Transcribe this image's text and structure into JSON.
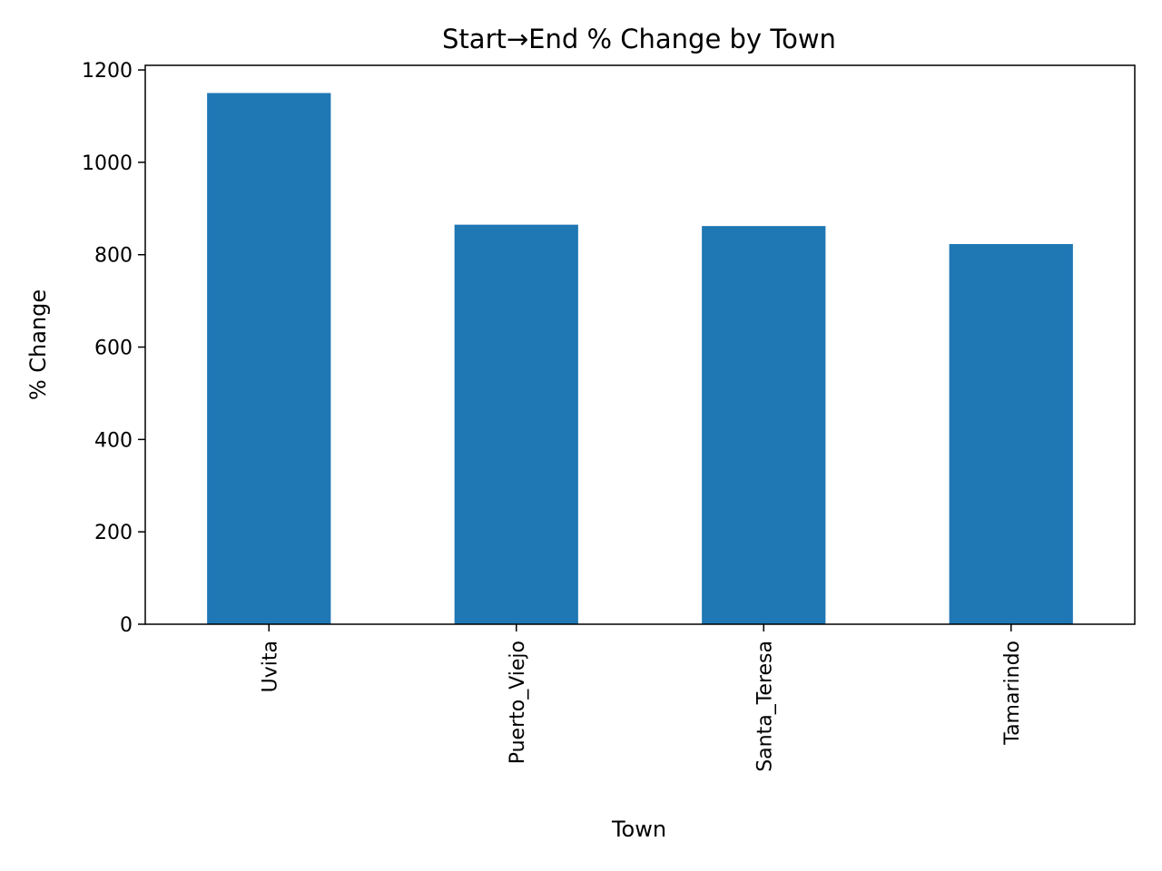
{
  "chart_data": {
    "type": "bar",
    "title": "Start→End % Change by Town",
    "xlabel": "Town",
    "ylabel": "% Change",
    "categories": [
      "Uvita",
      "Puerto_Viejo",
      "Santa_Teresa",
      "Tamarindo"
    ],
    "values": [
      1150,
      865,
      862,
      823
    ],
    "ylim": [
      0,
      1210
    ],
    "yticks": [
      0,
      200,
      400,
      600,
      800,
      1000,
      1200
    ],
    "bar_color": "#1f77b4",
    "grid": false,
    "legend": "none"
  }
}
